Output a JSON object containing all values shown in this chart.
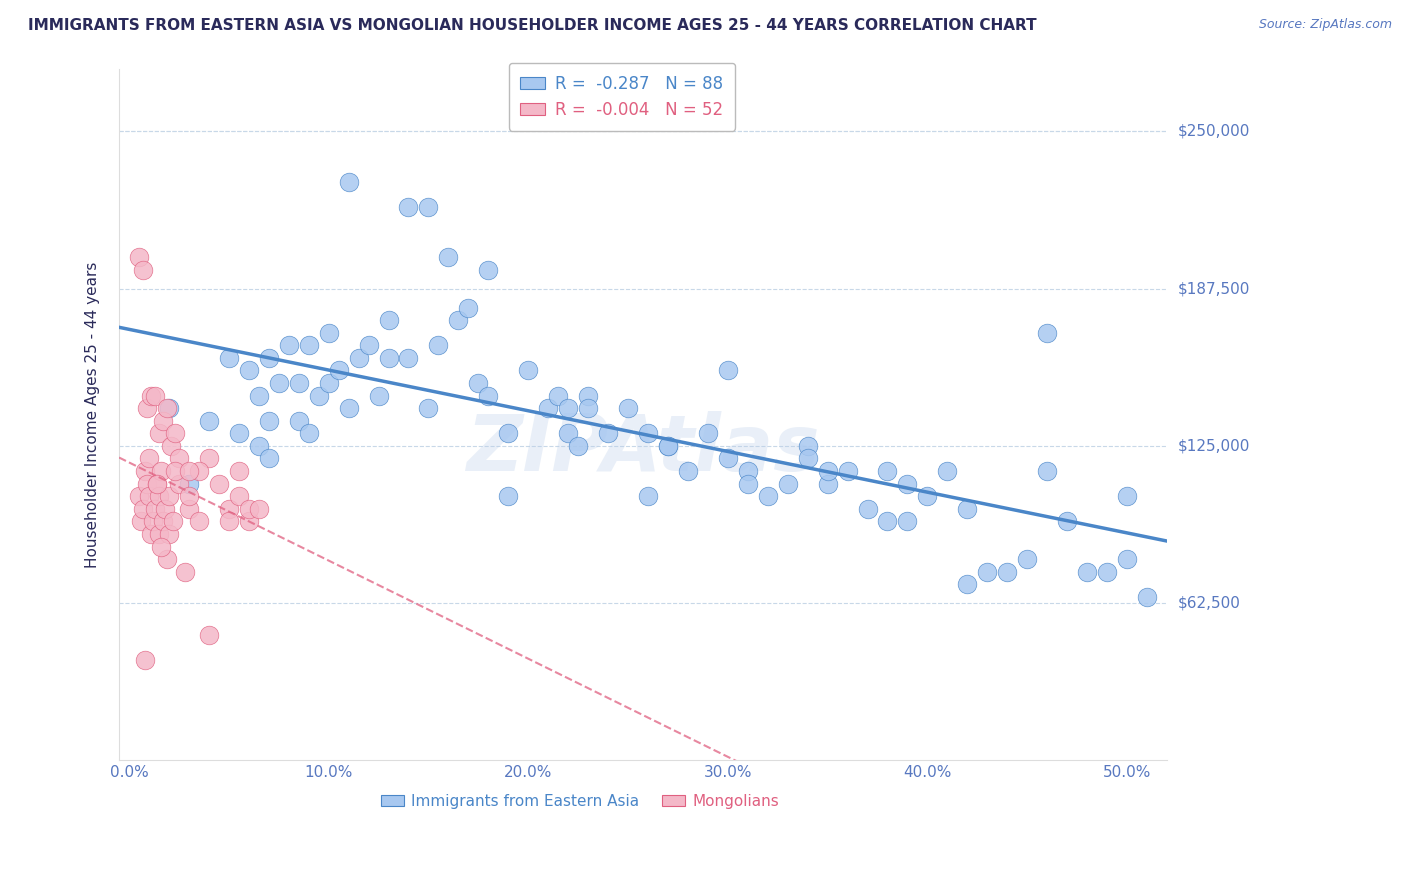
{
  "title": "IMMIGRANTS FROM EASTERN ASIA VS MONGOLIAN HOUSEHOLDER INCOME AGES 25 - 44 YEARS CORRELATION CHART",
  "source": "Source: ZipAtlas.com",
  "ylabel": "Householder Income Ages 25 - 44 years",
  "xlabel_ticks": [
    "0.0%",
    "10.0%",
    "20.0%",
    "30.0%",
    "40.0%",
    "50.0%"
  ],
  "xlabel_vals": [
    0.0,
    0.1,
    0.2,
    0.3,
    0.4,
    0.5
  ],
  "ytick_labels": [
    "$62,500",
    "$125,000",
    "$187,500",
    "$250,000"
  ],
  "ytick_vals": [
    62500,
    125000,
    187500,
    250000
  ],
  "ylim": [
    0,
    275000
  ],
  "xlim": [
    -0.005,
    0.52
  ],
  "watermark": "ZIPAtlas",
  "legend_blue_r": "-0.287",
  "legend_blue_n": "88",
  "legend_pink_r": "-0.004",
  "legend_pink_n": "52",
  "blue_color": "#a8c8f0",
  "blue_line_color": "#4a86c8",
  "pink_color": "#f4b8c8",
  "pink_line_color": "#e06080",
  "title_color": "#2a2a5a",
  "axis_label_color": "#2a2a5a",
  "tick_label_color": "#5878c0",
  "grid_color": "#c8d8e8",
  "background_color": "#ffffff",
  "blue_scatter_x": [
    0.02,
    0.04,
    0.05,
    0.055,
    0.06,
    0.065,
    0.07,
    0.07,
    0.075,
    0.08,
    0.085,
    0.085,
    0.09,
    0.09,
    0.095,
    0.1,
    0.1,
    0.105,
    0.11,
    0.115,
    0.12,
    0.125,
    0.13,
    0.14,
    0.15,
    0.155,
    0.16,
    0.165,
    0.17,
    0.175,
    0.18,
    0.19,
    0.2,
    0.21,
    0.215,
    0.22,
    0.225,
    0.23,
    0.24,
    0.25,
    0.26,
    0.27,
    0.28,
    0.29,
    0.3,
    0.31,
    0.32,
    0.33,
    0.34,
    0.35,
    0.36,
    0.37,
    0.38,
    0.39,
    0.4,
    0.41,
    0.42,
    0.43,
    0.44,
    0.45,
    0.46,
    0.47,
    0.48,
    0.49,
    0.5,
    0.51,
    0.14,
    0.18,
    0.22,
    0.26,
    0.3,
    0.34,
    0.38,
    0.42,
    0.46,
    0.5,
    0.03,
    0.07,
    0.11,
    0.15,
    0.065,
    0.13,
    0.19,
    0.23,
    0.27,
    0.31,
    0.35,
    0.39
  ],
  "blue_scatter_y": [
    140000,
    135000,
    160000,
    130000,
    155000,
    125000,
    160000,
    135000,
    150000,
    165000,
    135000,
    150000,
    165000,
    130000,
    145000,
    170000,
    150000,
    155000,
    140000,
    160000,
    165000,
    145000,
    175000,
    160000,
    140000,
    165000,
    200000,
    175000,
    180000,
    150000,
    145000,
    130000,
    155000,
    140000,
    145000,
    130000,
    125000,
    145000,
    130000,
    140000,
    130000,
    125000,
    115000,
    130000,
    120000,
    115000,
    105000,
    110000,
    125000,
    110000,
    115000,
    100000,
    115000,
    110000,
    105000,
    115000,
    70000,
    75000,
    75000,
    80000,
    115000,
    95000,
    75000,
    75000,
    80000,
    65000,
    220000,
    195000,
    140000,
    105000,
    155000,
    120000,
    95000,
    100000,
    170000,
    105000,
    110000,
    120000,
    230000,
    220000,
    145000,
    160000,
    105000,
    140000,
    125000,
    110000,
    115000,
    95000
  ],
  "pink_scatter_x": [
    0.005,
    0.006,
    0.007,
    0.008,
    0.009,
    0.01,
    0.01,
    0.011,
    0.012,
    0.013,
    0.014,
    0.015,
    0.015,
    0.016,
    0.017,
    0.018,
    0.019,
    0.02,
    0.02,
    0.022,
    0.025,
    0.028,
    0.03,
    0.035,
    0.04,
    0.05,
    0.055,
    0.06,
    0.005,
    0.007,
    0.009,
    0.011,
    0.013,
    0.015,
    0.017,
    0.019,
    0.021,
    0.023,
    0.025,
    0.03,
    0.035,
    0.04,
    0.045,
    0.05,
    0.055,
    0.06,
    0.065,
    0.014,
    0.016,
    0.023,
    0.03,
    0.008
  ],
  "pink_scatter_y": [
    105000,
    95000,
    100000,
    115000,
    110000,
    105000,
    120000,
    90000,
    95000,
    100000,
    110000,
    105000,
    90000,
    115000,
    95000,
    100000,
    80000,
    105000,
    90000,
    95000,
    110000,
    75000,
    100000,
    95000,
    120000,
    100000,
    115000,
    95000,
    200000,
    195000,
    140000,
    145000,
    145000,
    130000,
    135000,
    140000,
    125000,
    130000,
    120000,
    105000,
    115000,
    50000,
    110000,
    95000,
    105000,
    100000,
    100000,
    110000,
    85000,
    115000,
    115000,
    40000
  ]
}
